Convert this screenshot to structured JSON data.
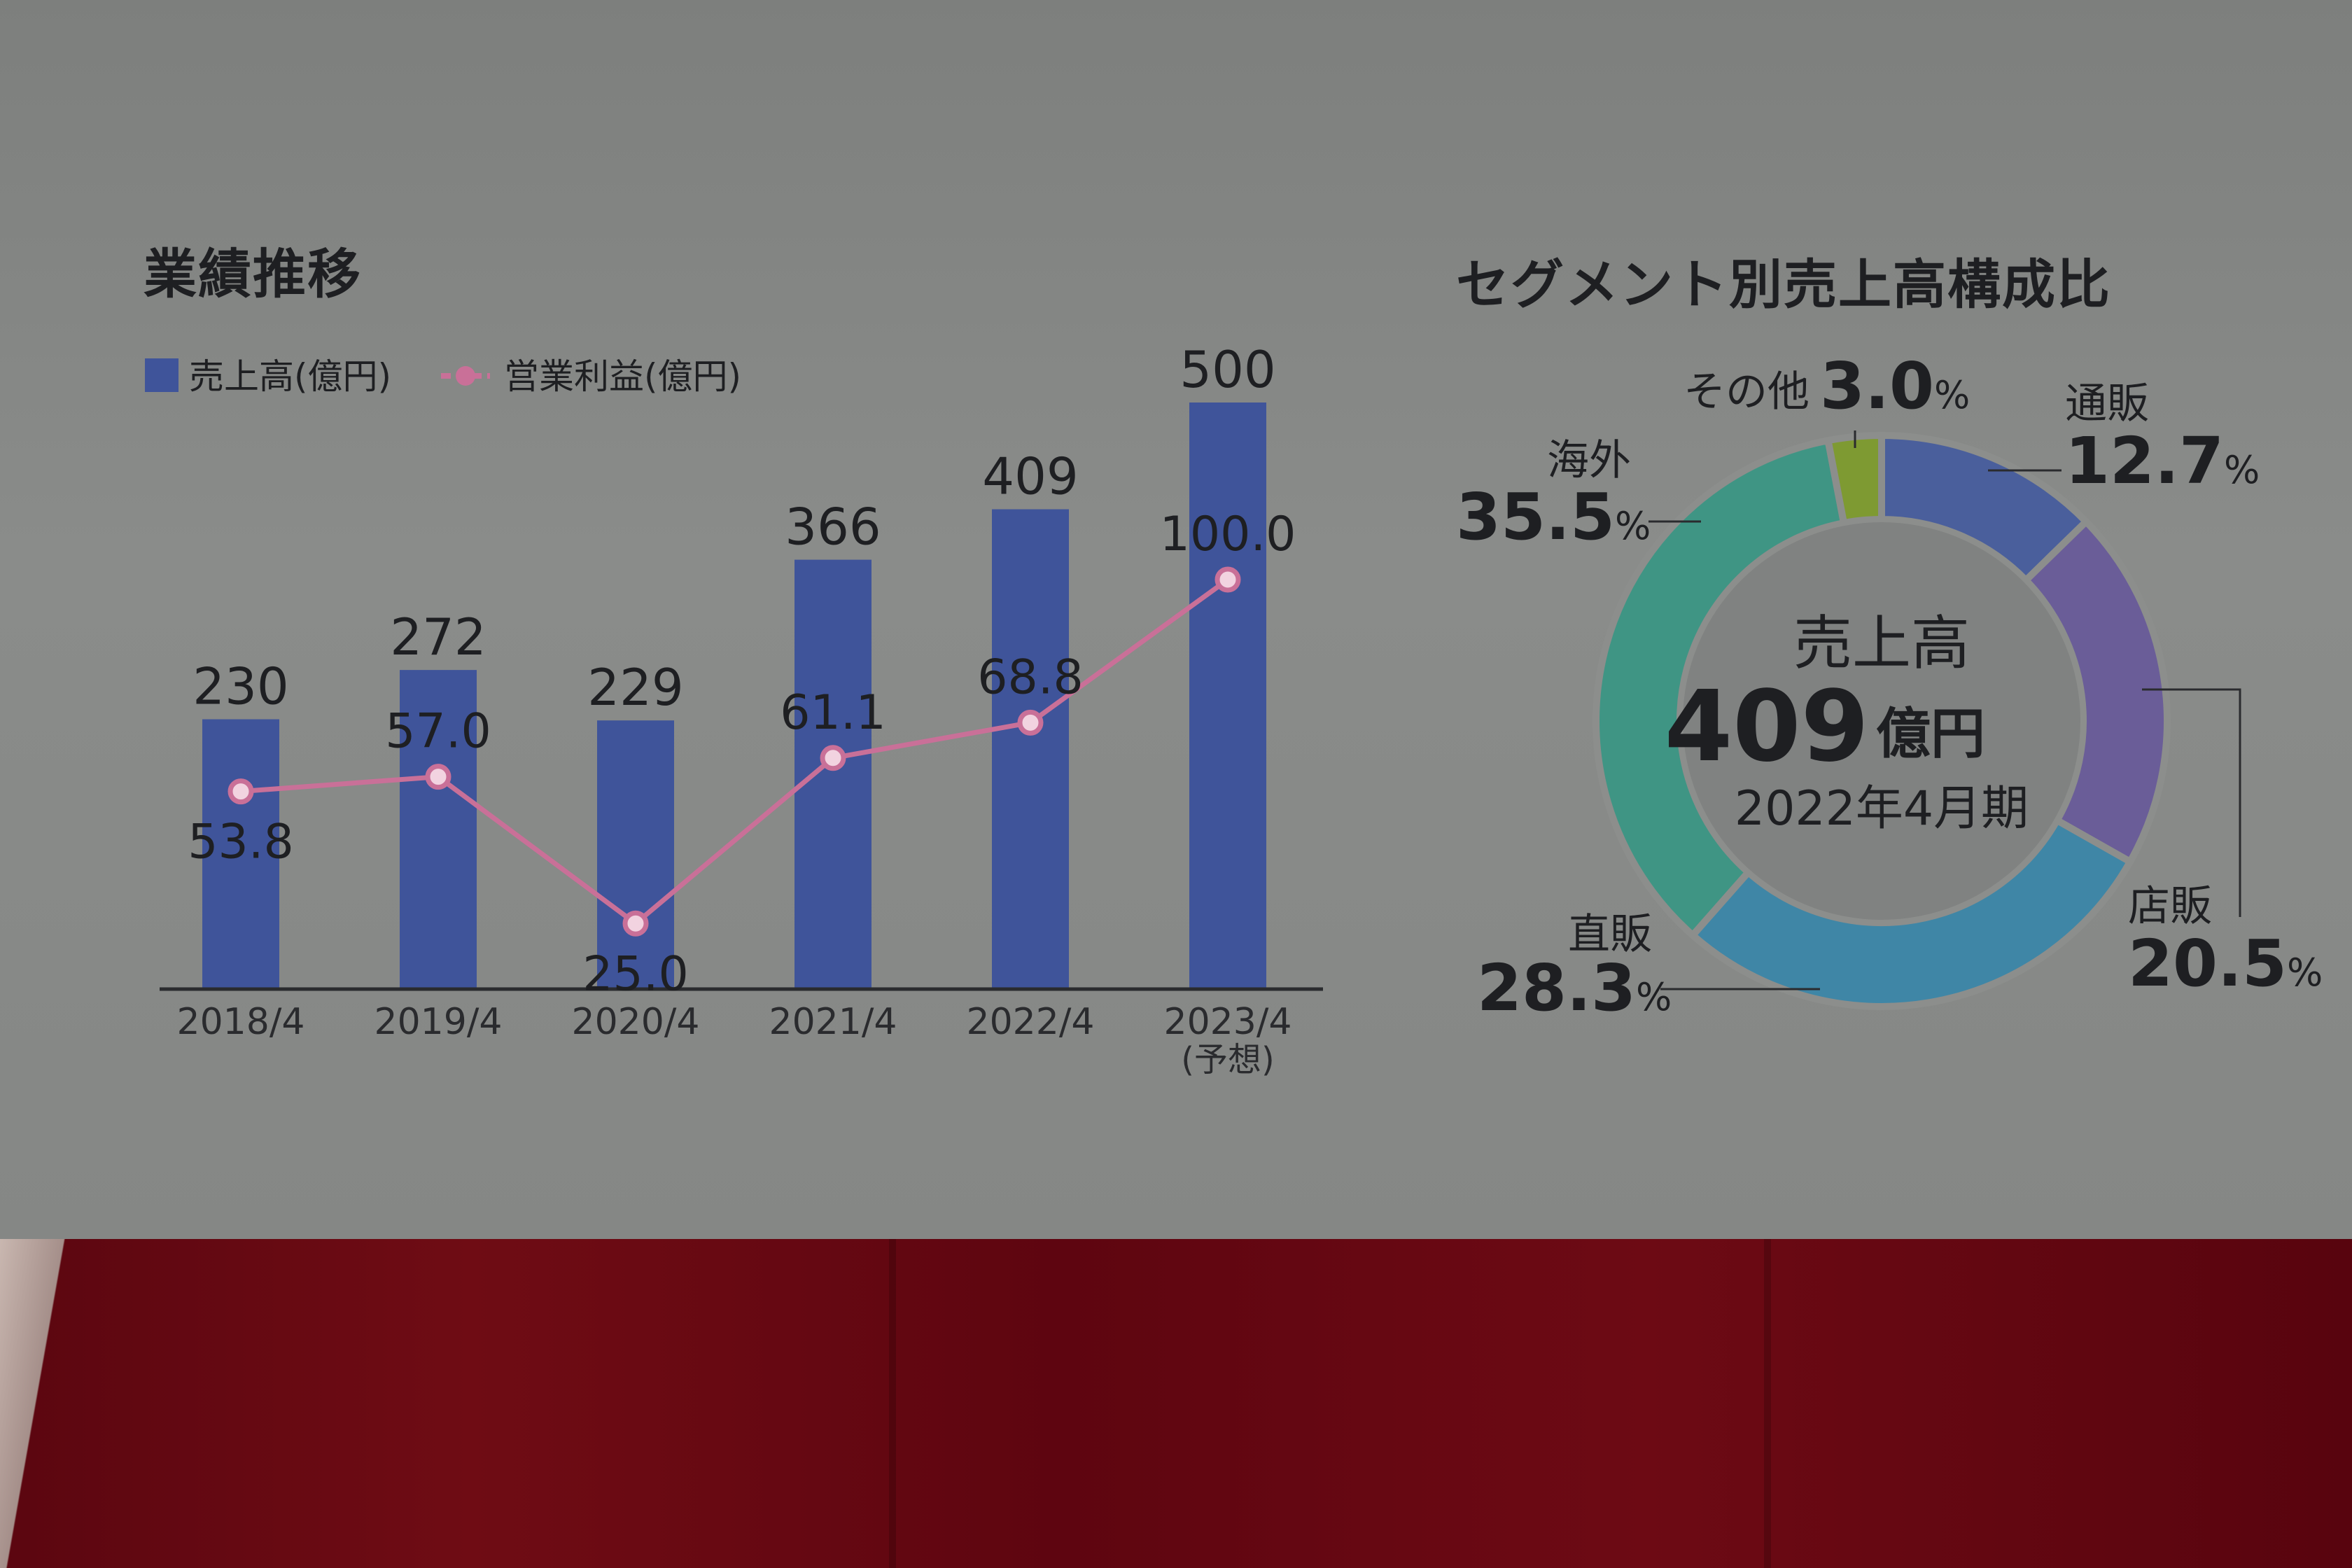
{
  "titles": {
    "performance": "業績推移",
    "segment": "セグメント別売上高構成比"
  },
  "legend": {
    "sales": "売上高(億円)",
    "profit": "営業利益(億円)"
  },
  "colors": {
    "bar": "#3f549a",
    "line": "#c97098",
    "ring_inner": "#808281",
    "text": "#1e1f22"
  },
  "chart_data": [
    {
      "type": "bar",
      "title": "業績推移",
      "categories": [
        "2018/4",
        "2019/4",
        "2020/4",
        "2021/4",
        "2022/4",
        "2023/4"
      ],
      "category_notes": [
        "",
        "",
        "",
        "",
        "",
        "(予想)"
      ],
      "series": [
        {
          "name": "売上高(億円)",
          "type": "bar",
          "values": [
            230,
            272,
            229,
            366,
            409,
            500
          ],
          "labels": [
            "230",
            "272",
            "229",
            "366",
            "409",
            "500"
          ]
        },
        {
          "name": "営業利益(億円)",
          "type": "line",
          "values": [
            53.8,
            57.0,
            25.0,
            61.1,
            68.8,
            100.0
          ],
          "labels": [
            "53.8",
            "57.0",
            "25.0",
            "61.1",
            "68.8",
            "100.0"
          ]
        }
      ],
      "ylim_bar": [
        0,
        510
      ],
      "legend_position": "top-left"
    },
    {
      "type": "pie",
      "title": "セグメント別売上高構成比",
      "center": {
        "label": "売上高",
        "value": "409",
        "unit": "億円",
        "period": "2022年4月期"
      },
      "slices": [
        {
          "name": "通販",
          "value": 12.7,
          "label": "12.7",
          "color": "#4a5f9c"
        },
        {
          "name": "店販",
          "value": 20.5,
          "label": "20.5",
          "color": "#6a5d98"
        },
        {
          "name": "直販",
          "value": 28.3,
          "label": "28.3",
          "color": "#3f86a6"
        },
        {
          "name": "海外",
          "value": 35.5,
          "label": "35.5",
          "color": "#3f9584"
        },
        {
          "name": "その他",
          "value": 3.0,
          "label": "3.0",
          "color": "#7e9a32"
        }
      ],
      "percent_sign": "%"
    }
  ]
}
